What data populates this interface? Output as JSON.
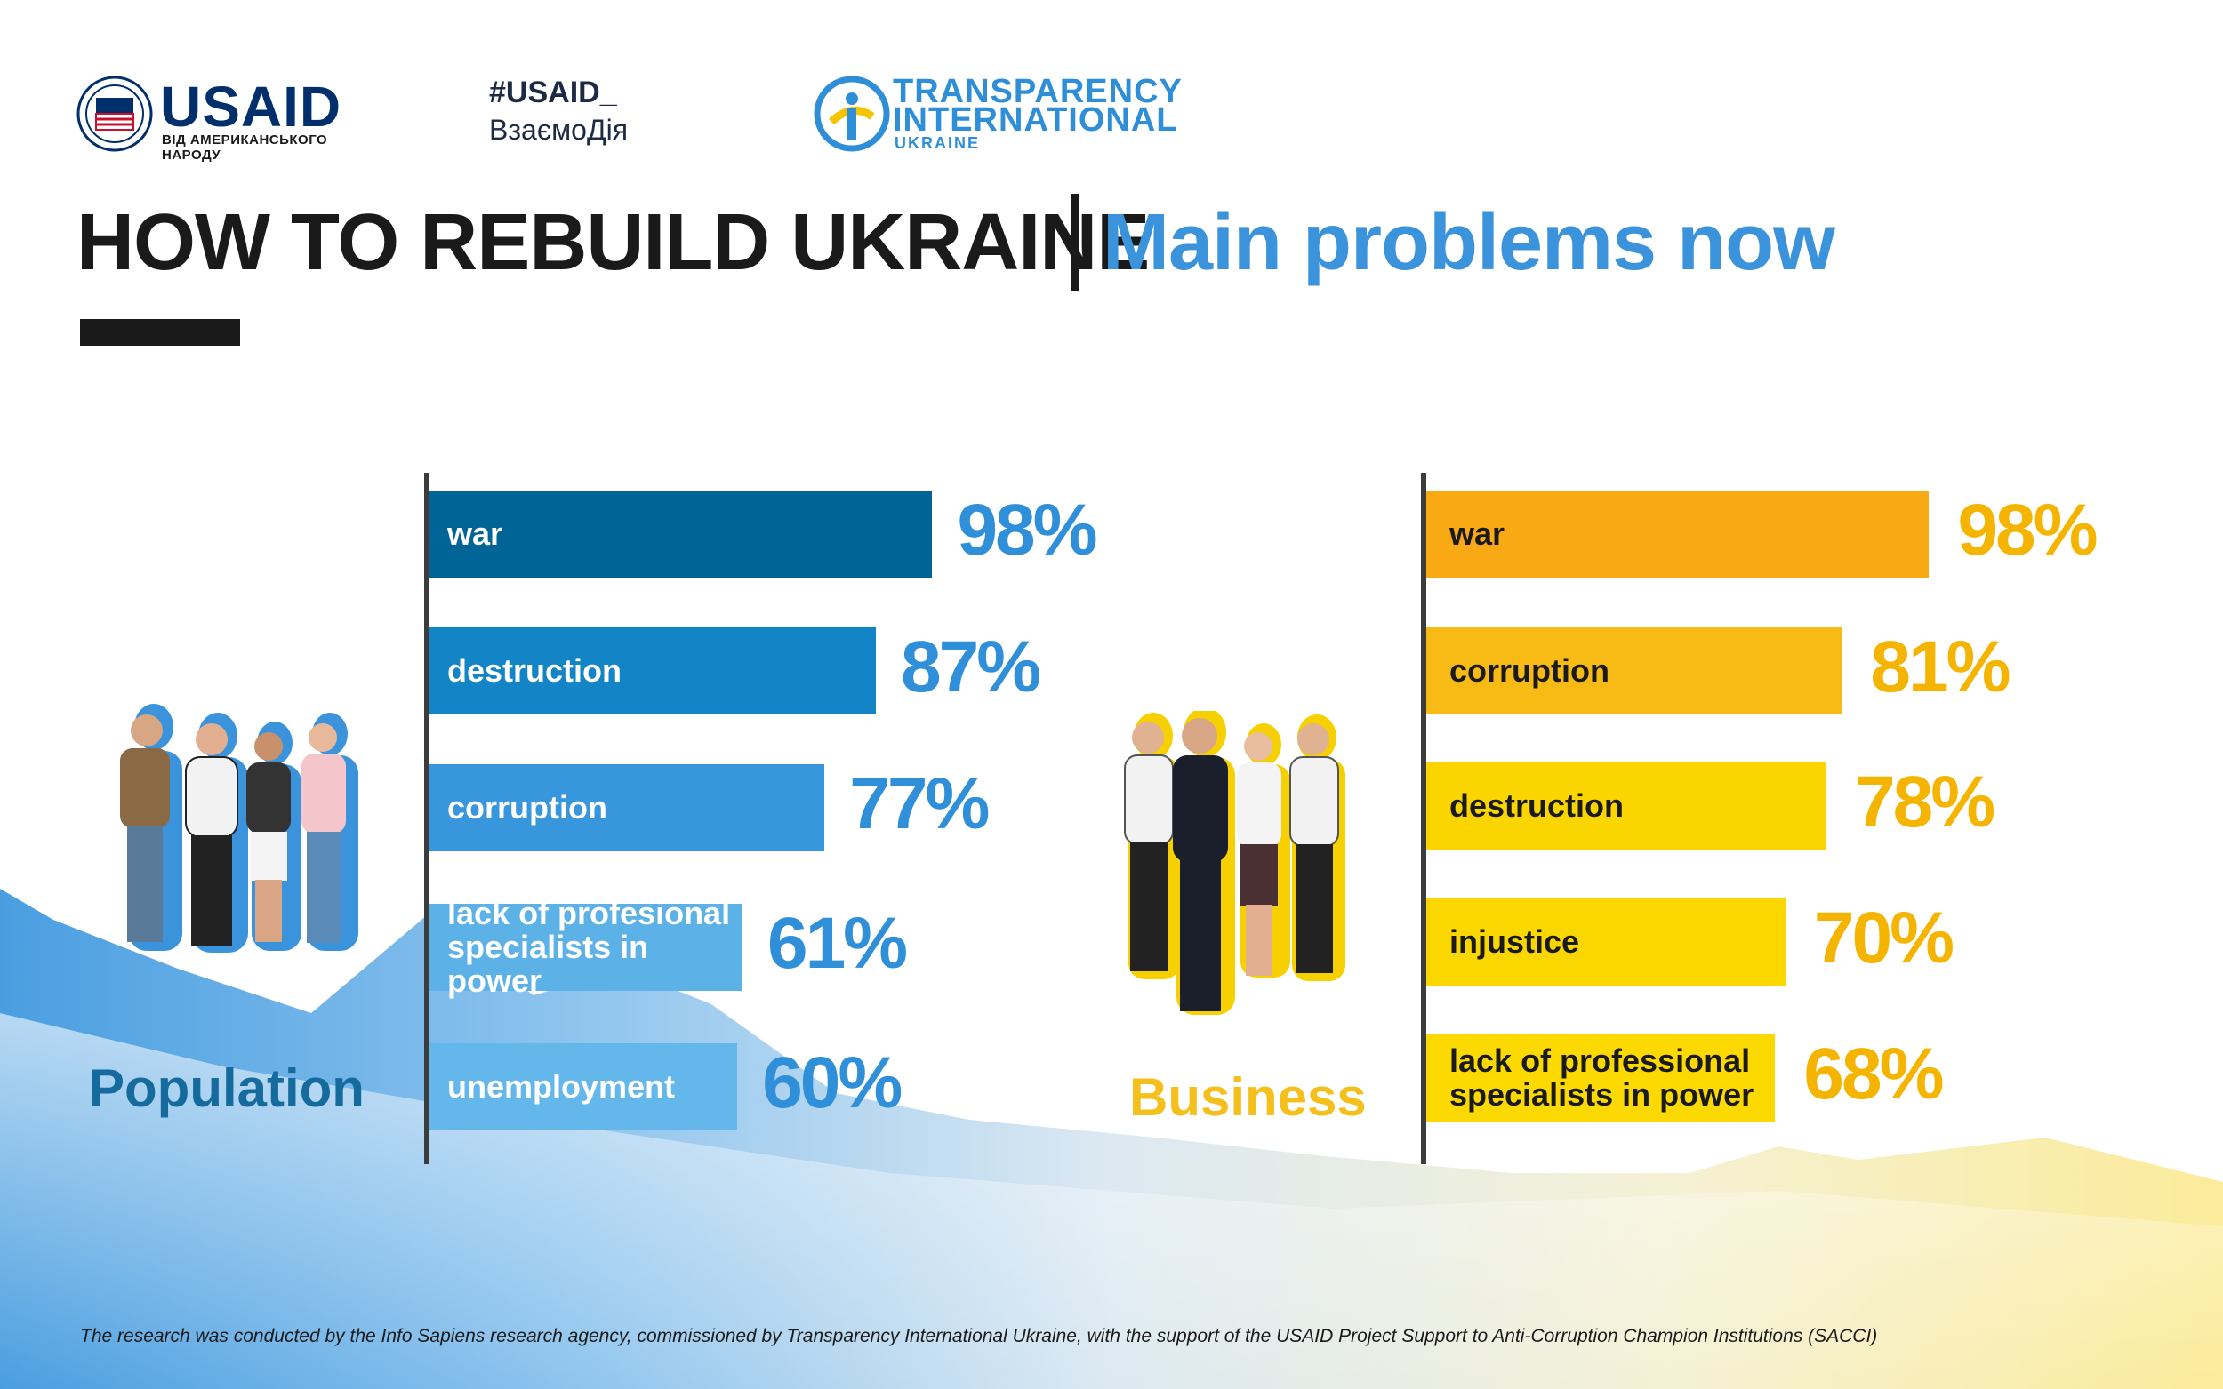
{
  "logos": {
    "usaid": {
      "name": "USAID",
      "tagline": "ВІД АМЕРИКАНСЬКОГО НАРОДУ"
    },
    "hashtag": {
      "line1": "#USAID_",
      "line2": "ВзаємоДія"
    },
    "ti": {
      "line1": "TRANSPARENCY",
      "line2": "INTERNATIONAL",
      "line3": "UKRAINE"
    }
  },
  "header": {
    "title": "HOW TO REBUILD UKRAINE",
    "subtitle": "Main problems now"
  },
  "chart_data": [
    {
      "type": "bar",
      "orientation": "horizontal",
      "group": "Population",
      "categories": [
        "war",
        "destruction",
        "corruption",
        "lack of profesional specialists in power",
        "unemployment"
      ],
      "category_lines": [
        [
          "war"
        ],
        [
          "destruction"
        ],
        [
          "corruption"
        ],
        [
          "lack of profesional",
          "specialists in power"
        ],
        [
          "unemployment"
        ]
      ],
      "values": [
        98,
        87,
        77,
        61,
        60
      ],
      "value_labels": [
        "98%",
        "87%",
        "77%",
        "61%",
        "60%"
      ],
      "unit": "%",
      "colors": [
        "#006496",
        "#1384c6",
        "#3896dc",
        "#5cb1e6",
        "#63b7ea"
      ],
      "value_color": "#2f8fd9",
      "label_color": "#ffffff"
    },
    {
      "type": "bar",
      "orientation": "horizontal",
      "group": "Business",
      "categories": [
        "war",
        "corruption",
        "destruction",
        "injustice",
        "lack of professional specialists in power"
      ],
      "category_lines": [
        [
          "war"
        ],
        [
          "corruption"
        ],
        [
          "destruction"
        ],
        [
          "injustice"
        ],
        [
          "lack of professional",
          "specialists in power"
        ]
      ],
      "values": [
        98,
        81,
        78,
        70,
        68
      ],
      "value_labels": [
        "98%",
        "81%",
        "78%",
        "70%",
        "68%"
      ],
      "unit": "%",
      "colors": [
        "#f9a914",
        "#f8ba14",
        "#fbd500",
        "#fbd700",
        "#fcd900"
      ],
      "value_color": "#f5b400",
      "label_color": "#1a1a1a"
    }
  ],
  "groups": {
    "population": "Population",
    "business": "Business"
  },
  "colors": {
    "population_label": "#156a9e",
    "business_label": "#f5bf1c",
    "axis": "#3c3c3c"
  },
  "footnote": "The research was conducted by the Info Sapiens research agency, commissioned by Transparency International Ukraine, with the support of the USAID Project Support to Anti-Corruption Champion Institutions (SACCI)"
}
